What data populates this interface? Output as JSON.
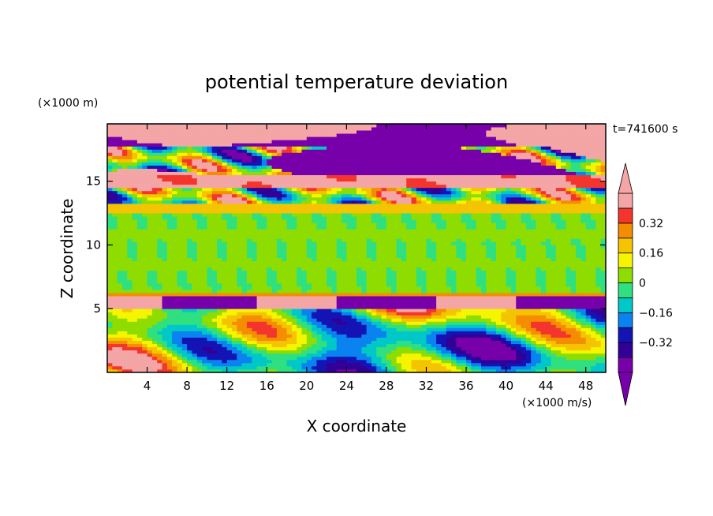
{
  "chart_data": {
    "type": "heatmap",
    "title": "potential temperature deviation",
    "xlabel": "X coordinate",
    "ylabel": "Z coordinate",
    "x_unit": "(×1000 m/s)",
    "y_unit": "(×1000 m)",
    "time_label": "t=741600 s",
    "xlim": [
      0,
      50
    ],
    "ylim": [
      0,
      19.5
    ],
    "x_ticks": [
      4,
      8,
      12,
      16,
      20,
      24,
      28,
      32,
      36,
      40,
      44,
      48
    ],
    "y_ticks": [
      5,
      10,
      15
    ],
    "colorbar": {
      "levels": [
        -0.4,
        -0.32,
        -0.24,
        -0.16,
        -0.08,
        0,
        0.08,
        0.16,
        0.24,
        0.32,
        0.4
      ],
      "labeled_levels": [
        0.32,
        0.16,
        0,
        -0.16,
        -0.32
      ],
      "tick_labels": [
        "0.32",
        "0.16",
        "0",
        "−0.16",
        "−0.32"
      ],
      "colors_high_to_low": [
        "#f4a5a5",
        "#f4352d",
        "#f58d00",
        "#f5c400",
        "#f5f500",
        "#8fdc00",
        "#2fe080",
        "#00c8c8",
        "#0a82f0",
        "#1414b4",
        "#320096",
        "#7800aa"
      ],
      "over_color": "#f4a5a5",
      "under_color": "#7800aa"
    },
    "layers": [
      {
        "z_range": [
          0,
          6
        ],
        "description_colors": [
          "#7800aa",
          "#1414b4",
          "#0a82f0",
          "#00c8c8",
          "#2fe080",
          "#8fdc00",
          "#f5f500",
          "#f58d00",
          "#f4352d",
          "#f4a5a5"
        ]
      },
      {
        "z_range": [
          6,
          13
        ],
        "description_colors": [
          "#8fdc00",
          "#2fe080"
        ]
      },
      {
        "z_range": [
          13,
          19.5
        ],
        "description_colors": [
          "#f4a5a5",
          "#7800aa",
          "#f4352d",
          "#f58d00",
          "#8fdc00",
          "#0a82f0"
        ]
      }
    ]
  }
}
